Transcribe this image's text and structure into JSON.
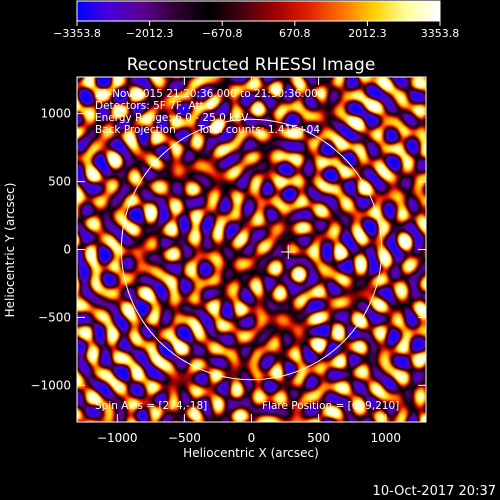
{
  "chart_data": {
    "type": "heatmap",
    "title": "Reconstructed RHESSI Image",
    "xlabel": "Heliocentric X (arcsec)",
    "ylabel": "Heliocentric Y (arcsec)",
    "xlim": [
      -1300,
      1300
    ],
    "ylim": [
      -1270,
      1270
    ],
    "x_ticks": [
      -1000,
      -500,
      0,
      500,
      1000
    ],
    "x_tick_labels": [
      "−1000",
      "−500",
      "0",
      "500",
      "1000"
    ],
    "y_ticks": [
      1000,
      500,
      0,
      -500,
      -1000
    ],
    "y_tick_labels": [
      "1000",
      "500",
      "0",
      "−500",
      "−1000"
    ],
    "colorbar": {
      "range": [
        -3353.8,
        3353.8
      ],
      "ticks": [
        -3353.8,
        -2012.3,
        -670.8,
        670.8,
        2012.3,
        3353.8
      ],
      "tick_labels": [
        "−3353.8",
        "−2012.3",
        "−670.8",
        "670.8",
        "2012.3",
        "3353.8"
      ],
      "colors": [
        "#0000ff",
        "#4a00d8",
        "#5a0090",
        "#300030",
        "#000000",
        "#440010",
        "#a00000",
        "#e02000",
        "#ff7000",
        "#ffd000",
        "#ffffa0",
        "#ffffff"
      ]
    },
    "annotations": [
      "21-Nov-2015 21:20:36.000 to 21:30:36.000",
      "Detectors: 5F 7F, Att 0",
      "Energy Range: 6.0 - 25.0 keV",
      "Back Projection",
      "Total counts: 1.41E+04"
    ],
    "bottom_annotations": [
      "Spin Axis = [274,-18]",
      "Flare Position = [609,210]"
    ],
    "solar_limb_radius": 970,
    "flare_marker": [
      274,
      -18
    ],
    "timestamp": "10-Oct-2017 20:37"
  },
  "colors": {
    "background": "#000000",
    "foreground": "#ffffff"
  }
}
